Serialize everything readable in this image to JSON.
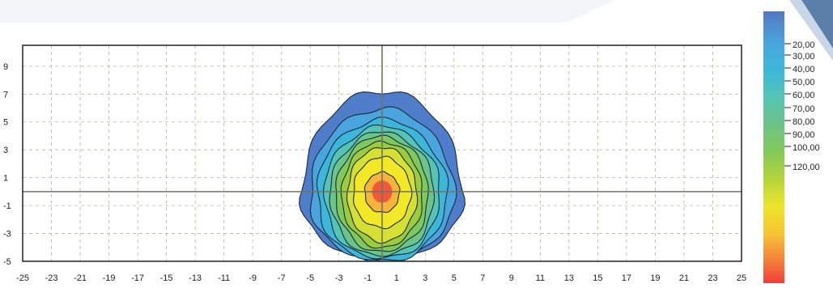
{
  "chart_data": {
    "type": "contour",
    "x_ticks": [
      "-25",
      "-23",
      "-21",
      "-19",
      "-17",
      "-15",
      "-13",
      "-11",
      "-9",
      "-7",
      "-5",
      "-3",
      "-1",
      "1",
      "3",
      "5",
      "7",
      "9",
      "11",
      "13",
      "15",
      "17",
      "19",
      "21",
      "23",
      "25"
    ],
    "y_ticks": [
      "9",
      "7",
      "5",
      "3",
      "1",
      "-1",
      "-3",
      "-5"
    ],
    "xlim": [
      -25,
      25
    ],
    "ylim": [
      -5,
      10.5
    ],
    "grid": true,
    "crosshair": {
      "x": 0,
      "y": 0
    },
    "peak": {
      "x": 0,
      "y": 0
    },
    "contour_levels": [
      {
        "value": 20,
        "half_width": 5.6,
        "top": 7.3,
        "bottom": -5.0
      },
      {
        "value": 30,
        "half_width": 5.0,
        "top": 6.0,
        "bottom": -5.0
      },
      {
        "value": 40,
        "half_width": 4.5,
        "top": 5.2,
        "bottom": -5.0
      },
      {
        "value": 50,
        "half_width": 4.0,
        "top": 4.7,
        "bottom": -4.8
      },
      {
        "value": 60,
        "half_width": 3.6,
        "top": 4.3,
        "bottom": -4.6
      },
      {
        "value": 70,
        "half_width": 3.2,
        "top": 4.0,
        "bottom": -4.3
      },
      {
        "value": 80,
        "half_width": 2.8,
        "top": 3.6,
        "bottom": -4.0
      },
      {
        "value": 90,
        "half_width": 2.4,
        "top": 3.2,
        "bottom": -3.6
      },
      {
        "value": 100,
        "half_width": 2.0,
        "top": 2.5,
        "bottom": -2.6
      },
      {
        "value": 120,
        "half_width": 1.2,
        "top": 1.4,
        "bottom": -1.5
      }
    ],
    "legend": {
      "position": "right",
      "labels": [
        "20,00",
        "30,00",
        "40,00",
        "50,00",
        "60,00",
        "70,00",
        "80,00",
        "90,00",
        "100,00",
        "120,00"
      ],
      "colors": [
        "#4f7dc9",
        "#4aa5de",
        "#3cb7d9",
        "#55c4b4",
        "#6bc58b",
        "#7fc85b",
        "#9ccc3e",
        "#d6e034",
        "#f2e826",
        "#f7b43a",
        "#f04d3a"
      ]
    }
  }
}
